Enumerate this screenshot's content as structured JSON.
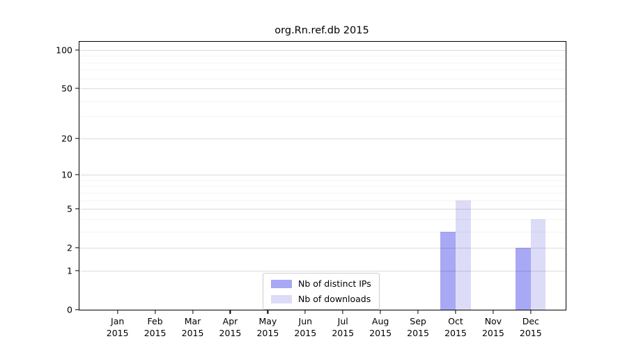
{
  "chart_data": {
    "type": "bar",
    "title": "org.Rn.ref.db 2015",
    "xlabel": "",
    "ylabel": "",
    "yscale": "log1p",
    "ylim": [
      0,
      116
    ],
    "y_ticks": [
      0,
      1,
      2,
      5,
      10,
      20,
      50,
      100
    ],
    "y_minor_ticks": [
      3,
      4,
      6,
      7,
      8,
      9,
      30,
      40,
      60,
      70,
      80,
      90
    ],
    "grid": true,
    "grid_above_bars": true,
    "legend_position": "lower center",
    "months": [
      "Jan",
      "Feb",
      "Mar",
      "Apr",
      "May",
      "Jun",
      "Jul",
      "Aug",
      "Sep",
      "Oct",
      "Nov",
      "Dec"
    ],
    "year": "2015",
    "series": [
      {
        "name": "Nb of distinct IPs",
        "color": "#a8a8f5",
        "values": [
          0,
          0,
          0,
          0,
          0,
          0,
          0,
          0,
          0,
          3,
          0,
          2
        ]
      },
      {
        "name": "Nb of downloads",
        "color": "#dcdcf8",
        "values": [
          0,
          0,
          0,
          0,
          0,
          0,
          0,
          0,
          0,
          6,
          0,
          4
        ]
      }
    ]
  }
}
